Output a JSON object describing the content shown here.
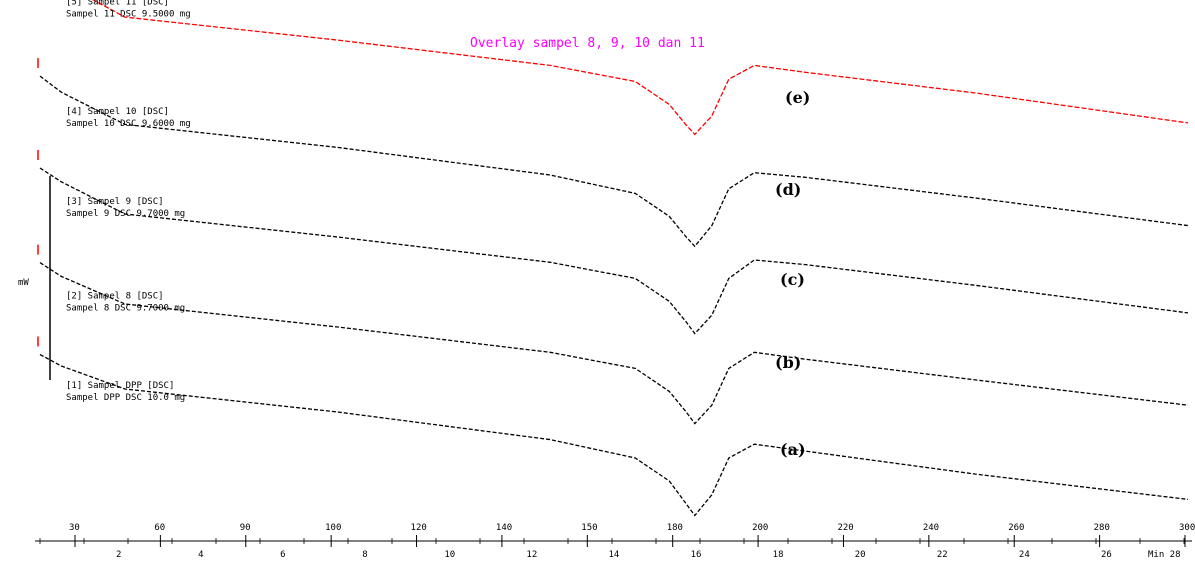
{
  "chart_data": {
    "type": "line",
    "title": "Overlay sampel 8, 9, 10 dan 11",
    "top_axis_ticks": [
      "30",
      "60",
      "90",
      "100",
      "120",
      "140",
      "150",
      "180",
      "200",
      "220",
      "240",
      "260",
      "280",
      "300"
    ],
    "bottom_axis_ticks": [
      "2",
      "4",
      "6",
      "8",
      "10",
      "12",
      "14",
      "16",
      "18",
      "20",
      "22",
      "24",
      "26"
    ],
    "bottom_axis_end_label": "Min 28",
    "y_scale_label": "mW",
    "series": [
      {
        "name": "(a)",
        "legend_lines": [
          "[1] Sampel DPP [DSC]",
          "Sampel DPP DSC 10.0 mg"
        ],
        "color": "#000000",
        "x": [
          30,
          35,
          50,
          100,
          150,
          170,
          178,
          182,
          184,
          188,
          192,
          198,
          210,
          250,
          300
        ],
        "y": [
          535,
          540,
          550,
          560,
          572,
          580,
          590,
          600,
          605,
          596,
          580,
          574,
          577,
          587,
          598
        ]
      },
      {
        "name": "(b)",
        "legend_lines": [
          "[2] Sampel 8 [DSC]",
          "Sampel 8 DSC 9.7000 mg"
        ],
        "color": "#000000",
        "x": [
          30,
          35,
          50,
          100,
          150,
          170,
          178,
          182,
          184,
          188,
          192,
          198,
          210,
          250,
          300
        ],
        "y": [
          532,
          538,
          550,
          560,
          571,
          578,
          588,
          597,
          602,
          594,
          578,
          571,
          574,
          583,
          594
        ]
      },
      {
        "name": "(c)",
        "legend_lines": [
          "[3] Sampel 9 [DSC]",
          "Sampel 9 DSC 9.7000 mg"
        ],
        "color": "#000000",
        "x": [
          30,
          35,
          50,
          100,
          150,
          170,
          178,
          182,
          184,
          188,
          192,
          198,
          210,
          250,
          300
        ],
        "y": [
          530,
          536,
          550,
          560,
          571,
          578,
          588,
          597,
          602,
          594,
          578,
          570,
          572,
          581,
          593
        ]
      },
      {
        "name": "(d)",
        "legend_lines": [
          "[4] Sampel 10 [DSC]",
          "Sampel 10 DSC 9.6000 mg"
        ],
        "color": "#000000",
        "x": [
          30,
          35,
          50,
          100,
          150,
          170,
          178,
          182,
          184,
          188,
          192,
          198,
          210,
          250,
          300
        ],
        "y": [
          527,
          534,
          548,
          558,
          570,
          578,
          588,
          597,
          601,
          592,
          576,
          569,
          571,
          580,
          592
        ]
      },
      {
        "name": "(e)",
        "legend_lines": [
          "[5] Sampel 11 [DSC]",
          "Sampel 11 DSC 9.5000 mg"
        ],
        "color": "#ff0000",
        "x": [
          30,
          35,
          50,
          100,
          150,
          170,
          178,
          182,
          184,
          188,
          192,
          198,
          210,
          250,
          300
        ],
        "y": [
          524,
          532,
          547,
          557,
          568,
          575,
          585,
          594,
          598,
          590,
          574,
          568,
          571,
          580,
          593
        ]
      }
    ],
    "curve_labels": [
      "(a)",
      "(b)",
      "(c)",
      "(d)",
      "(e)"
    ]
  }
}
